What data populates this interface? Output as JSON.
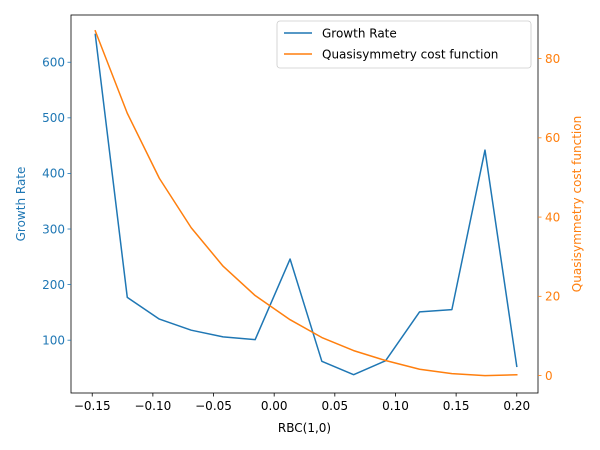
{
  "chart_data": {
    "type": "line",
    "xlabel": "RBC(1,0)",
    "ylabel_left": "Growth Rate",
    "ylabel_right": "Quasisymmetry cost function",
    "xlim": [
      -0.1675,
      0.2175
    ],
    "ylim_left": [
      5,
      685
    ],
    "ylim_right": [
      -4.4,
      91.0
    ],
    "x_ticks": [
      -0.15,
      -0.1,
      -0.05,
      0.0,
      0.05,
      0.1,
      0.15,
      0.2
    ],
    "x_tick_labels": [
      "−0.15",
      "−0.10",
      "−0.05",
      "0.00",
      "0.05",
      "0.10",
      "0.15",
      "0.20"
    ],
    "y_left_ticks": [
      100,
      200,
      300,
      400,
      500,
      600
    ],
    "y_left_tick_labels": [
      "100",
      "200",
      "300",
      "400",
      "500",
      "600"
    ],
    "y_right_ticks": [
      0,
      20,
      40,
      60,
      80
    ],
    "y_right_tick_labels": [
      "0",
      "20",
      "40",
      "60",
      "80"
    ],
    "legend_position": "top-right",
    "colors": {
      "growth": "#1f77b4",
      "qs": "#ff7f0e"
    },
    "x": [
      -0.1475,
      -0.1211,
      -0.0947,
      -0.0684,
      -0.0421,
      -0.0157,
      0.0131,
      0.0393,
      0.0655,
      0.0918,
      0.1199,
      0.1465,
      0.1738,
      0.2
    ],
    "series": [
      {
        "name": "Growth Rate",
        "axis": "left",
        "color": "#1f77b4",
        "values": [
          650,
          177,
          138,
          118,
          106,
          101,
          246,
          62,
          38,
          63,
          151,
          155,
          442,
          53
        ]
      },
      {
        "name": "Quasisymmetry cost function",
        "axis": "right",
        "color": "#ff7f0e",
        "values": [
          87.0,
          66.2,
          49.8,
          37.3,
          27.6,
          20.2,
          14.1,
          9.6,
          6.3,
          3.8,
          1.6,
          0.5,
          0.0,
          0.2
        ]
      }
    ]
  }
}
